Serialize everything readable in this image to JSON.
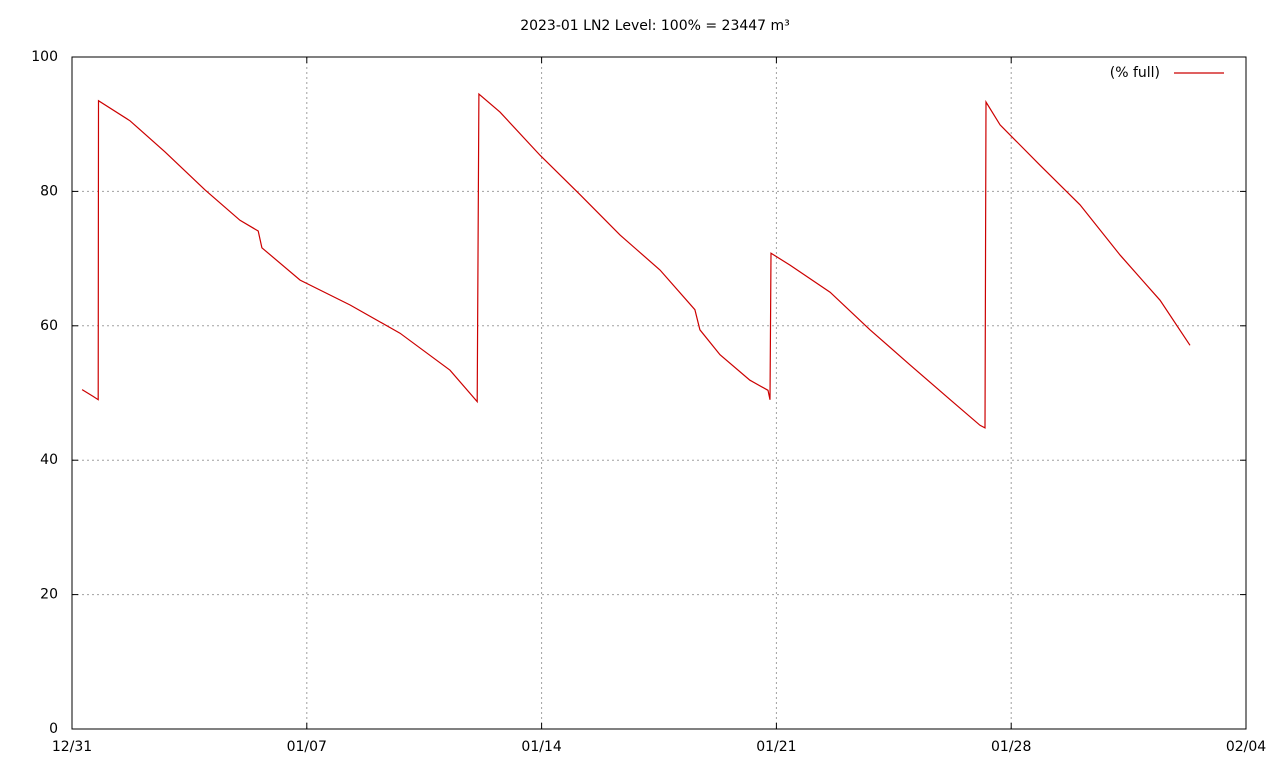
{
  "chart_data": {
    "type": "line",
    "title": "2023-01 LN2 Level: 100% = 23447 m³",
    "x": [
      0.3,
      0.63,
      0.78,
      0.79,
      1.73,
      2.77,
      3.97,
      5.01,
      5.55,
      5.66,
      6.8,
      8.29,
      9.78,
      11.27,
      12.08,
      12.13,
      12.76,
      13.95,
      15.15,
      16.34,
      17.53,
      18.57,
      18.72,
      19.32,
      20.21,
      20.75,
      20.81,
      20.84,
      21.41,
      22.6,
      23.79,
      24.98,
      26.18,
      27.07,
      27.22,
      27.25,
      27.67,
      28.86,
      30.05,
      31.25,
      32.44,
      33.33
    ],
    "series": [
      {
        "name": "(% full)",
        "color": "#cc0000",
        "values": [
          50.5,
          49.5,
          49.0,
          93.5,
          90.5,
          85.9,
          80.2,
          75.7,
          74.1,
          71.6,
          66.8,
          63.1,
          58.9,
          53.4,
          48.7,
          94.5,
          91.8,
          85.4,
          79.5,
          73.5,
          68.3,
          62.4,
          59.4,
          55.7,
          51.9,
          50.4,
          49.0,
          70.8,
          69.0,
          65.0,
          59.4,
          54.2,
          49.0,
          45.2,
          44.8,
          93.3,
          89.9,
          83.9,
          78.0,
          70.5,
          63.8,
          57.1
        ]
      }
    ],
    "xlim": [
      0,
      35
    ],
    "xticks": [
      {
        "value": 0,
        "label": "12/31"
      },
      {
        "value": 7,
        "label": "01/07"
      },
      {
        "value": 14,
        "label": "01/14"
      },
      {
        "value": 21,
        "label": "01/21"
      },
      {
        "value": 28,
        "label": "01/28"
      },
      {
        "value": 35,
        "label": "02/04"
      }
    ],
    "ylim": [
      0,
      100
    ],
    "yticks": [
      0,
      20,
      40,
      60,
      80,
      100
    ],
    "grid": true,
    "legend": "top-right"
  }
}
